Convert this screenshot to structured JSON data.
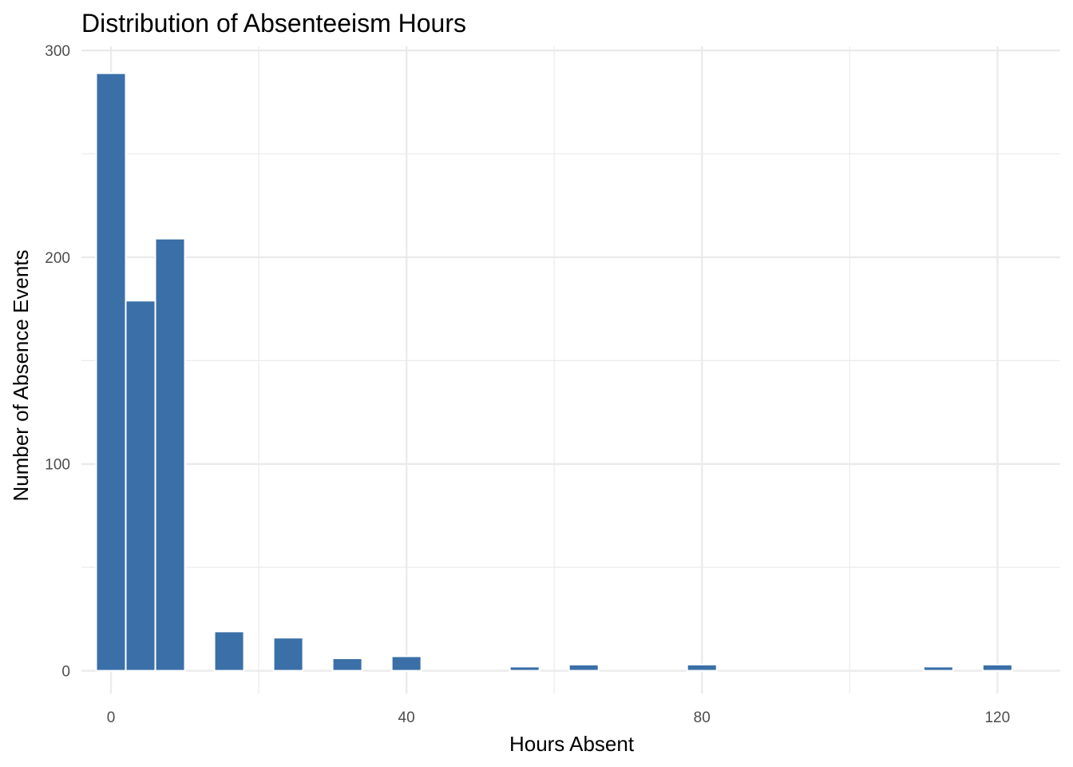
{
  "chart_data": {
    "type": "bar",
    "title": "Distribution of Absenteeism Hours",
    "xlabel": "Hours Absent",
    "ylabel": "Number of Absence Events",
    "xlim": [
      -4,
      128.5
    ],
    "ylim": [
      -11,
      302
    ],
    "x_ticks": [
      0,
      40,
      80,
      120
    ],
    "y_ticks": [
      0,
      100,
      200,
      300
    ],
    "x_minor": [
      20,
      60,
      100
    ],
    "y_minor": [
      50,
      150,
      250
    ],
    "bin_width": 4,
    "bins": [
      {
        "center": 0,
        "count": 289
      },
      {
        "center": 4,
        "count": 179
      },
      {
        "center": 8,
        "count": 209
      },
      {
        "center": 16,
        "count": 19
      },
      {
        "center": 24,
        "count": 16
      },
      {
        "center": 32,
        "count": 6
      },
      {
        "center": 40,
        "count": 7
      },
      {
        "center": 56,
        "count": 2
      },
      {
        "center": 64,
        "count": 3
      },
      {
        "center": 80,
        "count": 3
      },
      {
        "center": 112,
        "count": 2
      },
      {
        "center": 120,
        "count": 3
      }
    ],
    "bar_color": "#3a6fa8",
    "grid": true,
    "legend": "none"
  }
}
